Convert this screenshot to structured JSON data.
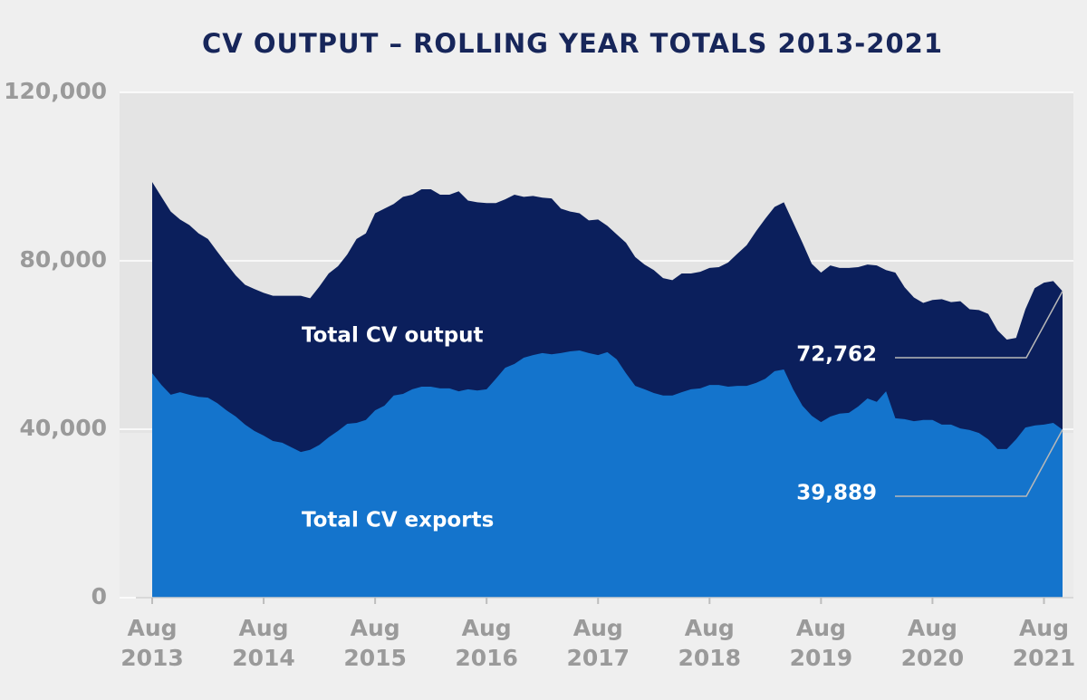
{
  "chart_data": {
    "type": "area",
    "title": "CV OUTPUT – ROLLING YEAR TOTALS 2013-2021",
    "categories": [
      "Aug 2013",
      null,
      null,
      null,
      null,
      null,
      null,
      null,
      null,
      null,
      null,
      null,
      "Aug 2014",
      null,
      null,
      null,
      null,
      null,
      null,
      null,
      null,
      null,
      null,
      null,
      "Aug 2015",
      null,
      null,
      null,
      null,
      null,
      null,
      null,
      null,
      null,
      null,
      null,
      "Aug 2016",
      null,
      null,
      null,
      null,
      null,
      null,
      null,
      null,
      null,
      null,
      null,
      "Aug 2017",
      null,
      null,
      null,
      null,
      null,
      null,
      null,
      null,
      null,
      null,
      null,
      "Aug 2018",
      null,
      null,
      null,
      null,
      null,
      null,
      null,
      null,
      null,
      null,
      null,
      "Aug 2019",
      null,
      null,
      null,
      null,
      null,
      null,
      null,
      null,
      null,
      null,
      null,
      "Aug 2020",
      null,
      null,
      null,
      null,
      null,
      null,
      null,
      null,
      null,
      null,
      null,
      "Aug 2021",
      null,
      null
    ],
    "series": [
      {
        "name": "Total CV output",
        "color": "#0b1f5c",
        "values": [
          98700,
          95200,
          91700,
          89800,
          88500,
          86500,
          85200,
          82200,
          79300,
          76500,
          74300,
          73300,
          72400,
          71700,
          71700,
          71700,
          71700,
          71100,
          73900,
          77000,
          78700,
          81500,
          85200,
          86500,
          91300,
          92400,
          93500,
          95200,
          95700,
          97000,
          97000,
          95700,
          95700,
          96500,
          94300,
          93900,
          93700,
          93700,
          94600,
          95700,
          95200,
          95400,
          95000,
          94800,
          92400,
          91700,
          91300,
          89600,
          89800,
          88300,
          86300,
          84300,
          80900,
          79100,
          77800,
          75900,
          75400,
          77000,
          77000,
          77400,
          78300,
          78500,
          79600,
          81700,
          83700,
          87000,
          90000,
          92800,
          93900,
          89100,
          84300,
          79300,
          77200,
          78900,
          78300,
          78300,
          78500,
          79100,
          78900,
          77800,
          77200,
          73700,
          71300,
          70000,
          70700,
          70900,
          70200,
          70400,
          68500,
          68300,
          67400,
          63500,
          61300,
          61700,
          68500,
          73500,
          74800,
          75200,
          72762
        ],
        "value_labels": [
          null,
          null,
          null,
          null,
          null,
          null,
          null,
          null,
          null,
          null,
          null,
          null,
          null,
          null,
          null,
          null,
          null,
          null,
          null,
          null,
          null,
          null,
          null,
          null,
          null,
          null,
          null,
          null,
          null,
          null,
          null,
          null,
          null,
          null,
          null,
          null,
          null,
          null,
          null,
          null,
          null,
          null,
          null,
          null,
          null,
          null,
          null,
          null,
          null,
          null,
          null,
          null,
          null,
          null,
          null,
          null,
          null,
          null,
          null,
          null,
          null,
          null,
          null,
          null,
          null,
          null,
          null,
          null,
          null,
          null,
          null,
          null,
          null,
          null,
          null,
          null,
          null,
          null,
          null,
          null,
          null,
          null,
          null,
          null,
          null,
          null,
          null,
          null,
          null,
          null,
          null,
          null,
          null,
          null,
          null,
          null,
          null,
          null,
          "72,762"
        ]
      },
      {
        "name": "Total CV exports",
        "color": "#1474cc",
        "values": [
          53300,
          50500,
          48200,
          48800,
          48200,
          47700,
          47500,
          46200,
          44500,
          43000,
          41100,
          39600,
          38500,
          37200,
          36800,
          35700,
          34600,
          35100,
          36300,
          38100,
          39600,
          41300,
          41500,
          42200,
          44500,
          45600,
          48000,
          48400,
          49500,
          50100,
          50100,
          49700,
          49700,
          49000,
          49500,
          49200,
          49500,
          52000,
          54600,
          55500,
          57000,
          57600,
          58100,
          57800,
          58100,
          58500,
          58700,
          58100,
          57600,
          58300,
          56600,
          53300,
          50300,
          49500,
          48600,
          48000,
          48000,
          48800,
          49500,
          49700,
          50500,
          50500,
          50100,
          50300,
          50300,
          51000,
          52000,
          53800,
          54200,
          49500,
          45600,
          43200,
          41700,
          43000,
          43700,
          43900,
          45400,
          47300,
          46500,
          49000,
          42600,
          42400,
          41900,
          42200,
          42200,
          41100,
          41100,
          40200,
          39800,
          39100,
          37600,
          35300,
          35300,
          37600,
          40400,
          40900,
          41100,
          41500,
          39889
        ],
        "value_labels": [
          null,
          null,
          null,
          null,
          null,
          null,
          null,
          null,
          null,
          null,
          null,
          null,
          null,
          null,
          null,
          null,
          null,
          null,
          null,
          null,
          null,
          null,
          null,
          null,
          null,
          null,
          null,
          null,
          null,
          null,
          null,
          null,
          null,
          null,
          null,
          null,
          null,
          null,
          null,
          null,
          null,
          null,
          null,
          null,
          null,
          null,
          null,
          null,
          null,
          null,
          null,
          null,
          null,
          null,
          null,
          null,
          null,
          null,
          null,
          null,
          null,
          null,
          null,
          null,
          null,
          null,
          null,
          null,
          null,
          null,
          null,
          null,
          null,
          null,
          null,
          null,
          null,
          null,
          null,
          null,
          null,
          null,
          null,
          null,
          null,
          null,
          null,
          null,
          null,
          null,
          null,
          null,
          null,
          null,
          null,
          null,
          null,
          null,
          "39,889"
        ]
      }
    ],
    "ylim": [
      0,
      120000
    ],
    "yticks": [
      0,
      {
        "value": 40000,
        "label": "40,000"
      },
      {
        "value": 80000,
        "label": "80,000"
      },
      {
        "value": 120000,
        "label": "120,000"
      }
    ],
    "grid": true
  }
}
